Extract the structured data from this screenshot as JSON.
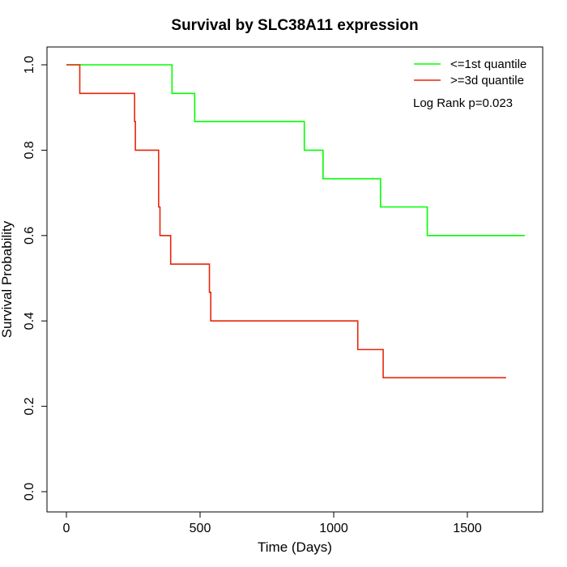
{
  "chart_data": {
    "type": "line",
    "title": "Survival by SLC38A11 expression",
    "xlabel": "Time (Days)",
    "ylabel": "Survival Probability",
    "xlim": [
      0,
      1750
    ],
    "ylim": [
      0,
      1.0
    ],
    "x_ticks": [
      0,
      500,
      1000,
      1500
    ],
    "x_tick_labels": [
      "0",
      "500",
      "1000",
      "1500"
    ],
    "y_ticks": [
      0.0,
      0.2,
      0.4,
      0.6,
      0.8,
      1.0
    ],
    "y_tick_labels": [
      "0.0",
      "0.2",
      "0.4",
      "0.6",
      "0.8",
      "1.0"
    ],
    "grid": false,
    "legend_position": "top-right",
    "annotation": "Log Rank p=0.023",
    "series": [
      {
        "name": "<=1st quantile",
        "color": "#00ff00",
        "step": true,
        "x": [
          0,
          395,
          480,
          890,
          960,
          1175,
          1350,
          1715
        ],
        "y": [
          1.0,
          0.933,
          0.867,
          0.8,
          0.733,
          0.667,
          0.6,
          0.6
        ]
      },
      {
        "name": ">=3d quantile",
        "color": "#e8250a",
        "step": true,
        "x": [
          0,
          50,
          255,
          258,
          345,
          350,
          390,
          535,
          540,
          1090,
          1185,
          1645
        ],
        "y": [
          1.0,
          0.933,
          0.867,
          0.8,
          0.667,
          0.6,
          0.533,
          0.467,
          0.4,
          0.333,
          0.267,
          0.267
        ]
      }
    ]
  }
}
